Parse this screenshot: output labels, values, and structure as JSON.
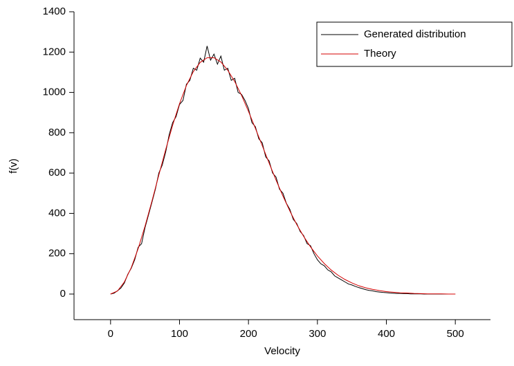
{
  "chart_data": {
    "type": "line",
    "xlabel": "Velocity",
    "ylabel": "f(v)",
    "xlim": [
      -53,
      551
    ],
    "ylim": [
      -127,
      1400
    ],
    "xticks": [
      0,
      100,
      200,
      300,
      400,
      500
    ],
    "yticks": [
      0,
      200,
      400,
      600,
      800,
      1000,
      1200,
      1400
    ],
    "legend": "upper right",
    "series": [
      {
        "name": "Generated distribution",
        "color": "#000000",
        "x": [
          0,
          5,
          10,
          15,
          20,
          25,
          30,
          35,
          40,
          45,
          50,
          55,
          60,
          65,
          70,
          75,
          80,
          85,
          90,
          95,
          100,
          105,
          110,
          115,
          120,
          125,
          130,
          135,
          140,
          145,
          150,
          155,
          160,
          165,
          170,
          175,
          180,
          185,
          190,
          195,
          200,
          205,
          210,
          215,
          220,
          225,
          230,
          235,
          240,
          245,
          250,
          255,
          260,
          265,
          270,
          275,
          280,
          285,
          290,
          295,
          300,
          305,
          310,
          315,
          320,
          325,
          330,
          335,
          340,
          345,
          350,
          355,
          360,
          365,
          370,
          375,
          380,
          385,
          390,
          395,
          400,
          405,
          410,
          415,
          420,
          425,
          430,
          435,
          440,
          445,
          450,
          455,
          460,
          465,
          470,
          475,
          480,
          485,
          490,
          495,
          500
        ],
        "values": [
          0,
          4,
          16,
          30,
          55,
          98,
          128,
          170,
          232,
          250,
          330,
          392,
          455,
          520,
          600,
          640,
          705,
          790,
          850,
          880,
          940,
          960,
          1040,
          1060,
          1120,
          1110,
          1170,
          1150,
          1230,
          1160,
          1190,
          1140,
          1180,
          1110,
          1120,
          1060,
          1070,
          1000,
          990,
          960,
          920,
          850,
          830,
          770,
          750,
          680,
          660,
          600,
          580,
          520,
          500,
          450,
          420,
          370,
          350,
          310,
          290,
          250,
          240,
          200,
          170,
          150,
          140,
          120,
          110,
          90,
          80,
          70,
          60,
          50,
          45,
          38,
          32,
          27,
          22,
          18,
          16,
          12,
          10,
          8,
          7,
          5,
          4,
          3,
          3,
          2,
          2,
          1,
          1,
          1,
          1,
          0,
          0,
          0,
          0,
          0,
          0,
          0,
          0,
          0,
          0
        ]
      },
      {
        "name": "Theory",
        "color": "#d40000",
        "x": [
          0,
          10,
          20,
          30,
          40,
          50,
          60,
          70,
          80,
          90,
          100,
          110,
          120,
          130,
          140,
          150,
          160,
          170,
          180,
          190,
          200,
          210,
          220,
          230,
          240,
          250,
          260,
          270,
          280,
          290,
          300,
          310,
          320,
          330,
          340,
          350,
          360,
          370,
          380,
          390,
          400,
          410,
          420,
          430,
          440,
          450,
          460,
          470,
          480,
          490,
          500
        ],
        "values": [
          0,
          15,
          60,
          131,
          225,
          337,
          461,
          590,
          717,
          837,
          944,
          1034,
          1103,
          1149,
          1172,
          1172,
          1151,
          1110,
          1054,
          985,
          906,
          822,
          736,
          649,
          565,
          486,
          412,
          345,
          286,
          234,
          189,
          151,
          119,
          93,
          72,
          55,
          41,
          31,
          23,
          17,
          12,
          9,
          6,
          5,
          3,
          2,
          1,
          1,
          1,
          0,
          0
        ]
      }
    ]
  }
}
